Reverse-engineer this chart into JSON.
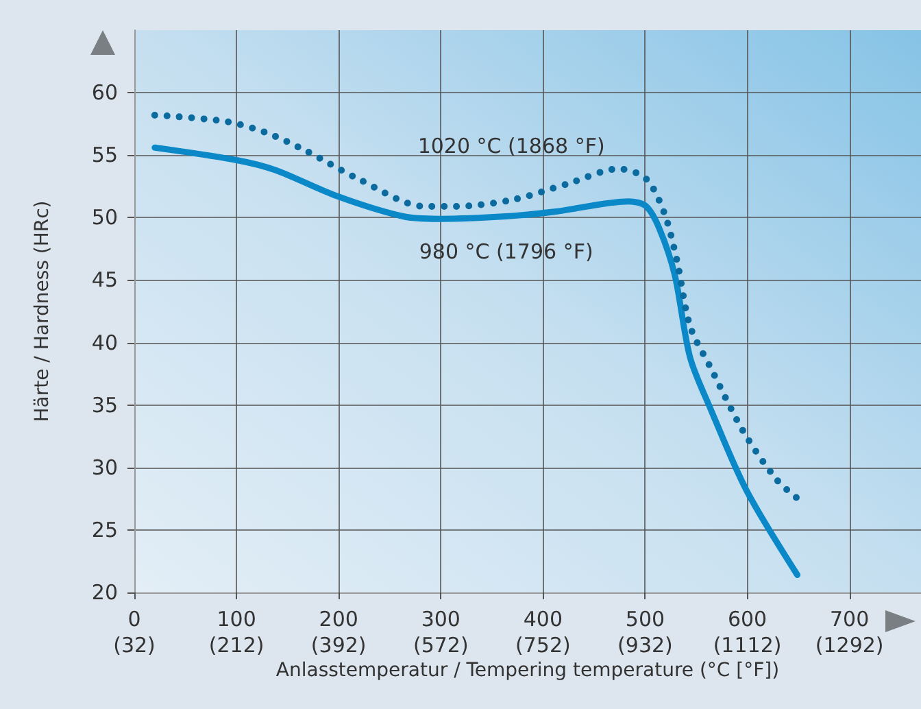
{
  "chart_data": {
    "type": "line",
    "xlabel": "Anlasstemperatur / Tempering temperature (°C [°F])",
    "ylabel": "Härte / Hardness (HRc)",
    "xlim": [
      0,
      770
    ],
    "ylim": [
      20,
      65
    ],
    "xticks": [
      0,
      100,
      200,
      300,
      400,
      500,
      600,
      700
    ],
    "x2lim": [
      32,
      1418
    ],
    "x2ticks": [
      {
        "value": 32,
        "label": "(32)"
      },
      {
        "value": 212,
        "label": "(212)"
      },
      {
        "value": 392,
        "label": "(392)"
      },
      {
        "value": 572,
        "label": "(572)"
      },
      {
        "value": 752,
        "label": "(752)"
      },
      {
        "value": 932,
        "label": "(932)"
      },
      {
        "value": 1112,
        "label": "(1112)"
      },
      {
        "value": 1292,
        "label": "(1292)"
      }
    ],
    "yticks": [
      20,
      25,
      30,
      35,
      40,
      45,
      50,
      55,
      60
    ],
    "grid": true,
    "legend": false,
    "marker": "none",
    "series": [
      {
        "name": "980 °C (1796 °F)",
        "color": "#0a88c8",
        "line_style": "solid",
        "x": [
          20,
          100,
          138,
          199,
          263,
          298,
          364,
          414,
          484,
          501,
          514,
          529,
          544,
          564,
          599,
          649
        ],
        "values": [
          55.6,
          54.6,
          53.8,
          51.7,
          50.1,
          49.9,
          50.1,
          50.5,
          51.3,
          50.9,
          49.1,
          45.4,
          38.8,
          34.7,
          28.2,
          21.4
        ]
      },
      {
        "name": "1020 °C (1868 °F)",
        "color": "#0b6a9e",
        "line_style": "dotted",
        "x": [
          20,
          89,
          129,
          169,
          219,
          284,
          314,
          369,
          424,
          474,
          501,
          519,
          531,
          544,
          564,
          596,
          629,
          651
        ],
        "values": [
          58.2,
          57.7,
          56.8,
          55.3,
          53.1,
          50.9,
          50.9,
          51.4,
          52.7,
          53.9,
          53.1,
          50.3,
          46.6,
          41.3,
          38.0,
          32.9,
          29.0,
          27.4
        ]
      }
    ]
  }
}
